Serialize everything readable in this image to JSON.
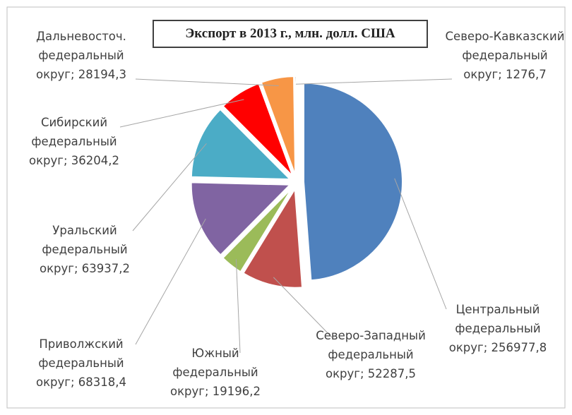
{
  "chart_data": {
    "type": "pie",
    "title": "Экспорт в 2013 г., млн. долл. США",
    "categories": [
      "Центральный федеральный округ;",
      "Северо-Западный федеральный округ;",
      "Южный федеральный округ;",
      "Приволжский федеральный округ;",
      "Уральский федеральный округ;",
      "Сибирский федеральный округ;",
      "Дальневосточ. федеральный округ;",
      "Северо-Кавказский федеральный округ;"
    ],
    "values": [
      256977.8,
      52287.5,
      19196.2,
      68318.4,
      63937.2,
      36204.2,
      28194.3,
      1276.7
    ],
    "value_labels": [
      "256977,8",
      "52287,5",
      "19196,2",
      "68318,4",
      "63937,2",
      "36204,2",
      "28194,3",
      "1276,7"
    ],
    "colors": [
      "#4f81bd",
      "#c0504d",
      "#9bbb59",
      "#8064a2",
      "#4bacc6",
      "#ff0000",
      "#f79646",
      "#000000"
    ]
  }
}
